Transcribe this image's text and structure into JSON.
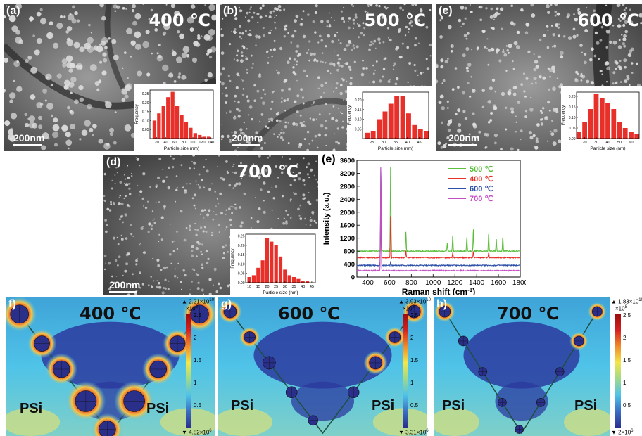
{
  "panels": {
    "a": {
      "label": "(a)",
      "temp": "400 ℃",
      "scale": "200nm"
    },
    "b": {
      "label": "(b)",
      "temp": "500 ℃",
      "scale": "200nm"
    },
    "c": {
      "label": "(c)",
      "temp": "600 ℃",
      "scale": "200nm"
    },
    "d": {
      "label": "(d)",
      "temp": "700 ℃",
      "scale": "200nm"
    },
    "e": {
      "label": "(e)"
    },
    "f": {
      "label": "f)",
      "temp": "400 ℃",
      "left": "PSi",
      "right": "PSi",
      "cb_max": "▲ 2.21×10",
      "cb_max_exp": "10",
      "cb_mult": "×10",
      "cb_mult_exp": "8",
      "cb_ticks": [
        "2.5",
        "2",
        "1.5",
        "1",
        "0.5"
      ],
      "cb_min": "▼ 4.82×10",
      "cb_min_exp": "6"
    },
    "g": {
      "label": "g)",
      "temp": "600 ℃",
      "left": "PSi",
      "right": "PSi",
      "cb_max": "▲ 3.93×10",
      "cb_max_exp": "10",
      "cb_mult": "×10",
      "cb_mult_exp": "8",
      "cb_ticks": [
        "2.5",
        "2",
        "1.5",
        "1",
        "0.5"
      ],
      "cb_min": "▼ 3.31×10",
      "cb_min_exp": "6"
    },
    "h": {
      "label": "h)",
      "temp": "700 ℃",
      "left": "PSi",
      "right": "PSi",
      "cb_max": "▲ 1.83×10",
      "cb_max_exp": "10",
      "cb_mult": "×10",
      "cb_mult_exp": "8",
      "cb_ticks": [
        "2.5",
        "2",
        "1.5",
        "1",
        "0.5"
      ],
      "cb_min": "▼ 2×10",
      "cb_min_exp": "6"
    }
  },
  "chart_data": [
    {
      "type": "bar",
      "panel": "a",
      "xlabel": "Particle size (nm)",
      "ylabel": "Frequency",
      "xticks": [
        "20",
        "40",
        "60",
        "80",
        "100",
        "120",
        "140"
      ],
      "yticks": [
        "0.05",
        "0.10",
        "0.15",
        "0.20",
        "0.25"
      ],
      "xlim": [
        5,
        145
      ],
      "ylim": [
        0,
        0.27
      ],
      "x": [
        15,
        25,
        35,
        45,
        55,
        65,
        75,
        85,
        95,
        105,
        115,
        125,
        135
      ],
      "values": [
        0.1,
        0.14,
        0.18,
        0.23,
        0.26,
        0.18,
        0.13,
        0.09,
        0.06,
        0.03,
        0.02,
        0.01,
        0.01
      ]
    },
    {
      "type": "bar",
      "panel": "b",
      "xlabel": "Particle size (nm)",
      "ylabel": "Frequency",
      "xticks": [
        "25",
        "30",
        "35",
        "40",
        "45"
      ],
      "yticks": [
        "0.05",
        "0.10",
        "0.15",
        "0.20"
      ],
      "xlim": [
        21,
        49
      ],
      "ylim": [
        0,
        0.24
      ],
      "x": [
        23,
        25.5,
        28,
        30.5,
        33,
        35.5,
        38,
        40.5,
        43,
        45.5,
        48
      ],
      "values": [
        0.03,
        0.04,
        0.1,
        0.14,
        0.18,
        0.22,
        0.22,
        0.13,
        0.07,
        0.05,
        0.04
      ]
    },
    {
      "type": "bar",
      "panel": "c",
      "xlabel": "Particle size (nm)",
      "ylabel": "Frequency",
      "xticks": [
        "20",
        "30",
        "40",
        "50",
        "60"
      ],
      "yticks": [
        "0.00",
        "0.05",
        "0.10",
        "0.15",
        "0.20"
      ],
      "xlim": [
        13,
        67
      ],
      "ylim": [
        0,
        0.22
      ],
      "x": [
        15,
        20,
        25,
        30,
        35,
        40,
        45,
        50,
        55,
        60,
        65
      ],
      "values": [
        0.03,
        0.08,
        0.14,
        0.21,
        0.19,
        0.17,
        0.14,
        0.08,
        0.05,
        0.03,
        0.02
      ]
    },
    {
      "type": "bar",
      "panel": "d",
      "xlabel": "Particle size (nm)",
      "ylabel": "Frequency",
      "xticks": [
        "10",
        "15",
        "20",
        "25",
        "30",
        "35",
        "40",
        "45"
      ],
      "yticks": [
        "0.00",
        "0.05",
        "0.10",
        "0.15",
        "0.20",
        "0.25"
      ],
      "xlim": [
        8,
        47
      ],
      "ylim": [
        0,
        0.26
      ],
      "x": [
        10,
        12.5,
        15,
        17.5,
        20,
        22.5,
        25,
        27.5,
        30,
        32.5,
        35,
        37.5,
        40,
        42.5
      ],
      "values": [
        0.03,
        0.04,
        0.08,
        0.12,
        0.24,
        0.22,
        0.2,
        0.14,
        0.07,
        0.04,
        0.03,
        0.02,
        0.01,
        0.01
      ]
    },
    {
      "type": "line",
      "panel": "e",
      "xlabel": "Raman shift (cm",
      "xlabel_sup": "-1",
      "xlabel_end": ")",
      "ylabel": "Intensity (a.u.)",
      "xlim": [
        300,
        1800
      ],
      "ylim": [
        0,
        3600
      ],
      "xticks": [
        "400",
        "600",
        "800",
        "1000",
        "1200",
        "1400",
        "1600",
        "1800"
      ],
      "yticks": [
        "0",
        "400",
        "800",
        "1200",
        "1600",
        "2000",
        "2400",
        "2800",
        "3200",
        "3600"
      ],
      "legend_position": "top-right",
      "series": [
        {
          "name": "500 ℃",
          "color": "#5bbf3d",
          "baseline": 800,
          "peaks": [
            [
              520,
              1500
            ],
            [
              610,
              2750
            ],
            [
              750,
              600
            ],
            [
              1130,
              250
            ],
            [
              1180,
              500
            ],
            [
              1310,
              450
            ],
            [
              1370,
              700
            ],
            [
              1510,
              550
            ],
            [
              1580,
              400
            ],
            [
              1640,
              450
            ]
          ]
        },
        {
          "name": "400 ℃",
          "color": "#e8302a",
          "baseline": 600,
          "peaks": [
            [
              520,
              1300
            ],
            [
              610,
              1350
            ],
            [
              750,
              200
            ],
            [
              1180,
              150
            ],
            [
              1370,
              200
            ],
            [
              1510,
              150
            ]
          ]
        },
        {
          "name": "600 ℃",
          "color": "#2c4fa8",
          "baseline": 360,
          "peaks": [
            [
              520,
              3200
            ],
            [
              610,
              100
            ]
          ]
        },
        {
          "name": "700 ℃",
          "color": "#c44fc4",
          "baseline": 200,
          "peaks": [
            [
              520,
              3400
            ]
          ]
        }
      ]
    }
  ],
  "colors": {
    "bar": "#e8302a",
    "field_low": "#2b2f8f",
    "field_mid": "#4fc3e8",
    "field_high": "#d42020"
  }
}
